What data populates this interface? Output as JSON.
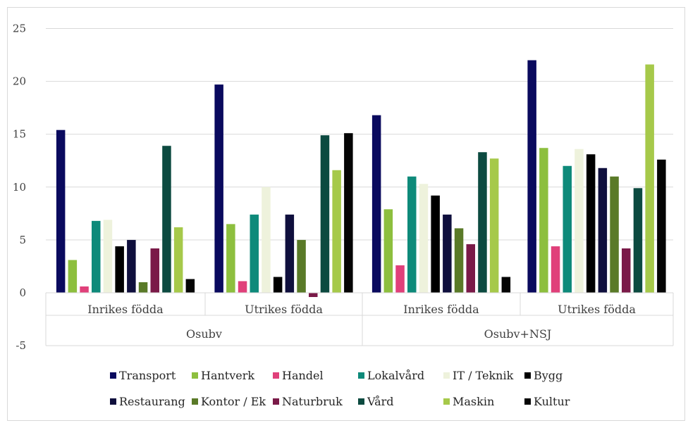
{
  "chart_data": {
    "type": "bar",
    "title": "",
    "xlabel": "",
    "ylabel": "",
    "ylim": [
      -5,
      25
    ],
    "yticks": [
      25,
      20,
      15,
      10,
      5,
      0,
      -5
    ],
    "grid": "horizontal",
    "legend_position": "bottom",
    "groups": [
      {
        "label": "Osubv",
        "categories": [
          "Inrikes födda",
          "Utrikes födda"
        ]
      },
      {
        "label": "Osubv+NSJ",
        "categories": [
          "Inrikes födda",
          "Utrikes födda"
        ]
      }
    ],
    "series": [
      {
        "name": "Transport",
        "color": "#0a0a5e",
        "values": [
          15.4,
          19.7,
          16.8,
          22.0
        ]
      },
      {
        "name": "Hantverk",
        "color": "#8dbf3e",
        "values": [
          3.1,
          6.5,
          7.9,
          13.7
        ]
      },
      {
        "name": "Handel",
        "color": "#e0407a",
        "values": [
          0.6,
          1.1,
          2.6,
          4.4
        ]
      },
      {
        "name": "Lokalvård",
        "color": "#0e8a7a",
        "values": [
          6.8,
          7.4,
          11.0,
          12.0
        ]
      },
      {
        "name": "IT / Teknik",
        "color": "#eef2dc",
        "values": [
          6.9,
          10.0,
          10.3,
          13.6
        ]
      },
      {
        "name": "Bygg",
        "color": "#000000",
        "values": [
          4.4,
          1.5,
          9.2,
          13.1
        ]
      },
      {
        "name": "Restaurang",
        "color": "#0f0f3d",
        "values": [
          5.0,
          7.4,
          7.4,
          11.8
        ]
      },
      {
        "name": "Kontor / Ek",
        "color": "#5a7a28",
        "values": [
          1.0,
          5.0,
          6.1,
          11.0
        ]
      },
      {
        "name": "Naturbruk",
        "color": "#7a1a48",
        "values": [
          4.2,
          -0.4,
          4.6,
          4.2
        ]
      },
      {
        "name": "Vård",
        "color": "#0c4a40",
        "values": [
          13.9,
          14.9,
          13.3,
          9.9
        ]
      },
      {
        "name": "Maskin",
        "color": "#a6c94a",
        "values": [
          6.2,
          11.6,
          12.7,
          21.6
        ]
      },
      {
        "name": "Kultur",
        "color": "#050505",
        "values": [
          1.3,
          15.1,
          1.5,
          12.6
        ]
      }
    ]
  }
}
